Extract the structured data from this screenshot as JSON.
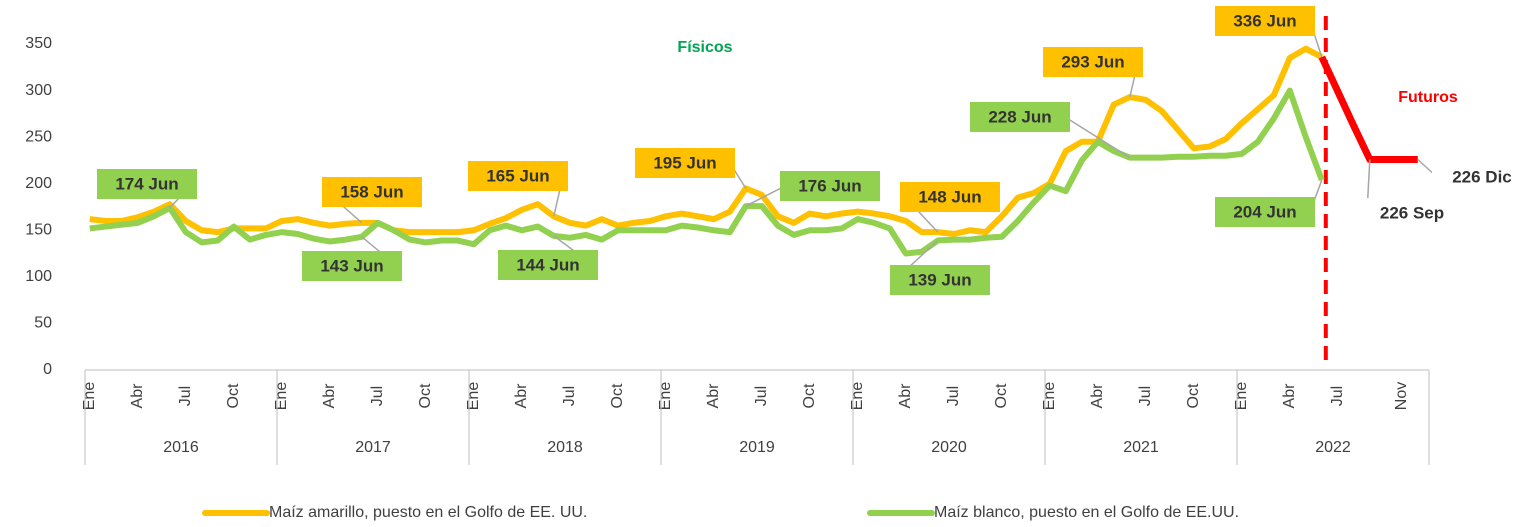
{
  "chart_data": {
    "type": "line",
    "categories": [
      "Ene",
      null,
      null,
      "Abr",
      null,
      null,
      "Jul",
      null,
      null,
      "Oct",
      null,
      null,
      "Ene",
      null,
      null,
      "Abr",
      null,
      null,
      "Jul",
      null,
      null,
      "Oct",
      null,
      null,
      "Ene",
      null,
      null,
      "Abr",
      null,
      null,
      "Jul",
      null,
      null,
      "Oct",
      null,
      null,
      "Ene",
      null,
      null,
      "Abr",
      null,
      null,
      "Jul",
      null,
      null,
      "Oct",
      null,
      null,
      "Ene",
      null,
      null,
      "Abr",
      null,
      null,
      "Jul",
      null,
      null,
      "Oct",
      null,
      null,
      "Ene",
      null,
      null,
      "Abr",
      null,
      null,
      "Jul",
      null,
      null,
      "Oct",
      null,
      null,
      "Ene",
      null,
      null,
      "Abr",
      null,
      null,
      "Jul",
      null,
      null,
      null,
      "Nov",
      null
    ],
    "groups": [
      "2016",
      "2017",
      "2018",
      "2019",
      "2020",
      "2021",
      "2022"
    ],
    "series": [
      {
        "name": "Maíz amarillo, puesto en el Golfo de EE. UU.",
        "color": "#ffc000",
        "values": [
          162,
          160,
          160,
          164,
          170,
          178,
          160,
          150,
          148,
          152,
          152,
          152,
          160,
          162,
          158,
          155,
          157,
          158,
          158,
          150,
          148,
          148,
          148,
          148,
          150,
          157,
          163,
          172,
          178,
          165,
          158,
          155,
          162,
          155,
          158,
          160,
          165,
          168,
          165,
          162,
          170,
          195,
          188,
          165,
          158,
          168,
          165,
          168,
          170,
          168,
          165,
          160,
          148,
          148,
          146,
          150,
          148,
          165,
          185,
          190,
          200,
          235,
          245,
          245,
          285,
          293,
          290,
          278,
          258,
          238,
          240,
          248,
          265,
          280,
          295,
          335,
          345,
          336,
          null,
          null,
          null,
          null,
          null,
          null
        ],
        "value_labels": [
          null,
          null,
          null,
          null,
          null,
          null,
          null,
          null,
          null,
          null,
          null,
          null,
          null,
          null,
          null,
          null,
          null,
          "158 Jun",
          null,
          null,
          null,
          null,
          null,
          null,
          null,
          null,
          null,
          null,
          null,
          "165 Jun",
          null,
          null,
          null,
          null,
          null,
          null,
          null,
          null,
          null,
          null,
          null,
          "195 Jun",
          null,
          null,
          null,
          null,
          null,
          null,
          null,
          null,
          null,
          null,
          null,
          "148 Jun",
          null,
          null,
          null,
          null,
          null,
          null,
          null,
          null,
          null,
          null,
          null,
          "293 Jun",
          null,
          null,
          null,
          null,
          null,
          null,
          null,
          null,
          null,
          null,
          null,
          "336 Jun",
          null,
          null,
          null,
          null,
          null,
          null
        ]
      },
      {
        "name": "Maíz blanco, puesto en el Golfo de EE.UU.",
        "color": "#92d050",
        "values": [
          152,
          154,
          156,
          158,
          165,
          174,
          148,
          137,
          139,
          154,
          140,
          145,
          148,
          146,
          141,
          138,
          140,
          143,
          158,
          150,
          140,
          137,
          139,
          139,
          135,
          150,
          155,
          150,
          154,
          144,
          142,
          145,
          140,
          150,
          150,
          150,
          150,
          155,
          153,
          150,
          148,
          176,
          176,
          155,
          145,
          150,
          150,
          152,
          162,
          158,
          152,
          125,
          127,
          139,
          140,
          140,
          142,
          143,
          160,
          180,
          198,
          192,
          225,
          245,
          235,
          228,
          228,
          228,
          229,
          229,
          230,
          230,
          232,
          245,
          270,
          300,
          250,
          204,
          null,
          null,
          null,
          null,
          null,
          null
        ],
        "value_labels": [
          null,
          null,
          null,
          null,
          null,
          "174  Jun",
          null,
          null,
          null,
          null,
          null,
          null,
          null,
          null,
          null,
          null,
          null,
          "143 Jun",
          null,
          null,
          null,
          null,
          null,
          null,
          null,
          null,
          null,
          null,
          null,
          "144 Jun",
          null,
          null,
          null,
          null,
          null,
          null,
          null,
          null,
          null,
          null,
          null,
          "176 Jun",
          null,
          null,
          null,
          null,
          null,
          null,
          null,
          null,
          null,
          null,
          null,
          "139 Jun",
          null,
          null,
          null,
          null,
          null,
          null,
          null,
          null,
          null,
          null,
          null,
          "228 Jun",
          null,
          null,
          null,
          null,
          null,
          null,
          null,
          null,
          null,
          null,
          null,
          "204 Jun",
          null,
          null,
          null,
          null,
          null,
          null
        ]
      },
      {
        "color": "#ff0000",
        "values": [
          null,
          null,
          null,
          null,
          null,
          null,
          null,
          null,
          null,
          null,
          null,
          null,
          null,
          null,
          null,
          null,
          null,
          null,
          null,
          null,
          null,
          null,
          null,
          null,
          null,
          null,
          null,
          null,
          null,
          null,
          null,
          null,
          null,
          null,
          null,
          null,
          null,
          null,
          null,
          null,
          null,
          null,
          null,
          null,
          null,
          null,
          null,
          null,
          null,
          null,
          null,
          null,
          null,
          null,
          null,
          null,
          null,
          null,
          null,
          null,
          null,
          null,
          null,
          null,
          null,
          null,
          null,
          null,
          null,
          null,
          null,
          null,
          null,
          null,
          null,
          null,
          null,
          336,
          299,
          262,
          226,
          226,
          226,
          226
        ],
        "value_labels": [
          null,
          null,
          null,
          null,
          null,
          null,
          null,
          null,
          null,
          null,
          null,
          null,
          null,
          null,
          null,
          null,
          null,
          null,
          null,
          null,
          null,
          null,
          null,
          null,
          null,
          null,
          null,
          null,
          null,
          null,
          null,
          null,
          null,
          null,
          null,
          null,
          null,
          null,
          null,
          null,
          null,
          null,
          null,
          null,
          null,
          null,
          null,
          null,
          null,
          null,
          null,
          null,
          null,
          null,
          null,
          null,
          null,
          null,
          null,
          null,
          null,
          null,
          null,
          null,
          null,
          null,
          null,
          null,
          null,
          null,
          null,
          null,
          null,
          null,
          null,
          null,
          null,
          null,
          null,
          null,
          "226 Sep",
          null,
          null,
          "226 Dic"
        ]
      }
    ],
    "annotations": [
      {
        "text": "Físicos",
        "color": "#00a651"
      },
      {
        "text": "Futuros",
        "color": "#ff0000"
      }
    ],
    "ylim": [
      0,
      350
    ],
    "yticks": [
      0,
      50,
      100,
      150,
      200,
      250,
      300,
      350
    ],
    "grid": false
  }
}
